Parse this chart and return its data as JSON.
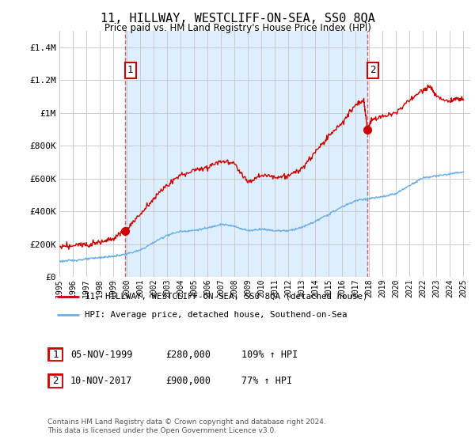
{
  "title": "11, HILLWAY, WESTCLIFF-ON-SEA, SS0 8QA",
  "subtitle": "Price paid vs. HM Land Registry's House Price Index (HPI)",
  "legend_line1": "11, HILLWAY, WESTCLIFF-ON-SEA, SS0 8QA (detached house)",
  "legend_line2": "HPI: Average price, detached house, Southend-on-Sea",
  "footnote": "Contains HM Land Registry data © Crown copyright and database right 2024.\nThis data is licensed under the Open Government Licence v3.0.",
  "sale1_date": "05-NOV-1999",
  "sale1_price": "£280,000",
  "sale1_hpi": "109% ↑ HPI",
  "sale1_year": 1999.85,
  "sale1_value": 280000,
  "sale2_date": "10-NOV-2017",
  "sale2_price": "£900,000",
  "sale2_hpi": "77% ↑ HPI",
  "sale2_year": 2017.85,
  "sale2_value": 900000,
  "hpi_line_color": "#6aaee8",
  "price_line_color": "#cc0000",
  "dashed_line_color": "#cc6666",
  "shade_color": "#ddeeff",
  "background_color": "#ffffff",
  "grid_color": "#cccccc",
  "box_edge_color": "#cc0000",
  "ylim_max": 1500000,
  "xlim_start": 1995.0,
  "xlim_end": 2025.5
}
